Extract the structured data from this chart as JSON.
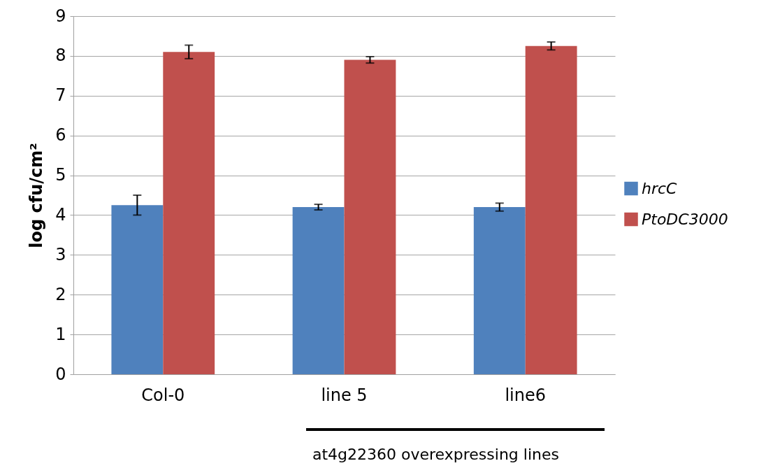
{
  "chart_data": {
    "type": "bar",
    "ylabel": "log  cfu/cm²",
    "categories": [
      "Col-0",
      "line 5",
      "line6"
    ],
    "series": [
      {
        "name": "hrcC",
        "color": "#4f81bd",
        "values": [
          4.25,
          4.2,
          4.2
        ],
        "errors": [
          0.25,
          0.07,
          0.1
        ]
      },
      {
        "name": "PtoDC3000",
        "color": "#c0504d",
        "values": [
          8.1,
          7.9,
          8.25
        ],
        "errors": [
          0.17,
          0.08,
          0.1
        ]
      }
    ],
    "ylim": [
      0,
      9
    ],
    "yticks": [
      0,
      1,
      2,
      3,
      4,
      5,
      6,
      7,
      8,
      9
    ],
    "grid": "y",
    "legend": "right",
    "annotations": [
      "at4g22360 overexpressing lines"
    ]
  }
}
